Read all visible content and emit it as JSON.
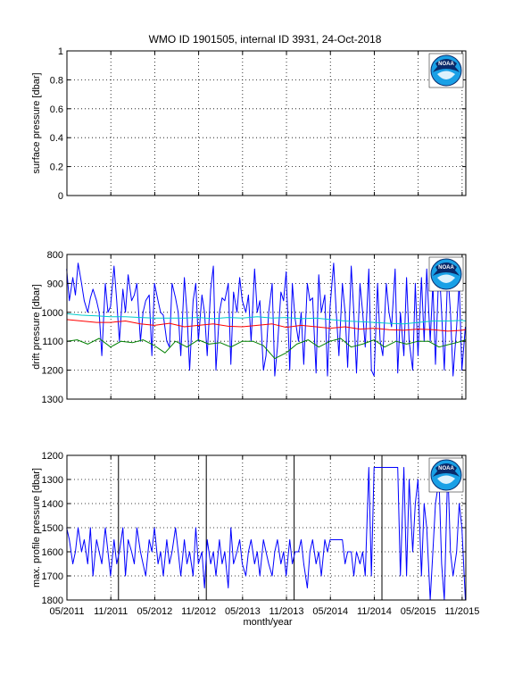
{
  "figure_title": "WMO ID 1901505, internal ID 3931, 24-Oct-2018",
  "x_axis": {
    "label": "month/year",
    "tick_labels": [
      "05/2011",
      "11/2011",
      "05/2012",
      "11/2012",
      "05/2013",
      "11/2013",
      "05/2014",
      "11/2014",
      "05/2015",
      "11/2015"
    ],
    "tick_values": [
      2011.333,
      2011.833,
      2012.333,
      2012.833,
      2013.333,
      2013.833,
      2014.333,
      2014.833,
      2015.333,
      2015.833
    ],
    "range": [
      2011.333,
      2015.875
    ]
  },
  "logo": {
    "icon": "noaa-logo",
    "text": "NOAA"
  },
  "colors": {
    "blue": "#0000ff",
    "red": "#ff0000",
    "green": "#008000",
    "cyan": "#00cccc",
    "black": "#000000"
  },
  "chart_data": [
    {
      "type": "line",
      "ylabel": "surface pressure [dbar]",
      "ylim": [
        0,
        1
      ],
      "y_ticks": [
        "0",
        "0.2",
        "0.4",
        "0.6",
        "0.8",
        "1"
      ],
      "y_tick_values": [
        0,
        0.2,
        0.4,
        0.6,
        0.8,
        1
      ],
      "grid": true,
      "series": []
    },
    {
      "type": "line",
      "ylabel": "drift pressure [dbar]",
      "ylim": [
        800,
        1300
      ],
      "y_reversed": true,
      "y_ticks": [
        "800",
        "900",
        "1000",
        "1100",
        "1200",
        "1300"
      ],
      "y_tick_values": [
        800,
        900,
        1000,
        1100,
        1200,
        1300
      ],
      "grid": true,
      "series": [
        {
          "color": "blue",
          "x": [
            2011.33,
            2011.36,
            2011.4,
            2011.43,
            2011.46,
            2011.5,
            2011.53,
            2011.57,
            2011.6,
            2011.63,
            2011.67,
            2011.7,
            2011.73,
            2011.77,
            2011.8,
            2011.83,
            2011.87,
            2011.9,
            2011.93,
            2011.97,
            2012.0,
            2012.03,
            2012.07,
            2012.1,
            2012.13,
            2012.17,
            2012.2,
            2012.23,
            2012.27,
            2012.3,
            2012.33,
            2012.37,
            2012.4,
            2012.43,
            2012.47,
            2012.5,
            2012.53,
            2012.57,
            2012.6,
            2012.63,
            2012.67,
            2012.7,
            2012.73,
            2012.77,
            2012.8,
            2012.83,
            2012.87,
            2012.9,
            2012.93,
            2012.97,
            2013.0,
            2013.03,
            2013.07,
            2013.1,
            2013.13,
            2013.17,
            2013.2,
            2013.23,
            2013.27,
            2013.3,
            2013.33,
            2013.37,
            2013.4,
            2013.43,
            2013.47,
            2013.5,
            2013.53,
            2013.57,
            2013.6,
            2013.63,
            2013.67,
            2013.7,
            2013.73,
            2013.77,
            2013.8,
            2013.83,
            2013.87,
            2013.9,
            2013.93,
            2013.97,
            2014.0,
            2014.03,
            2014.07,
            2014.1,
            2014.13,
            2014.17,
            2014.2,
            2014.23,
            2014.27,
            2014.3,
            2014.33,
            2014.37,
            2014.4,
            2014.43,
            2014.47,
            2014.5,
            2014.53,
            2014.57,
            2014.6,
            2014.63,
            2014.67,
            2014.7,
            2014.73,
            2014.77,
            2014.8,
            2014.83,
            2014.87,
            2014.9,
            2014.93,
            2014.97,
            2015.0,
            2015.03,
            2015.07,
            2015.1,
            2015.13,
            2015.17,
            2015.2,
            2015.23,
            2015.27,
            2015.3,
            2015.33,
            2015.37,
            2015.4,
            2015.43,
            2015.47,
            2015.5,
            2015.53,
            2015.57,
            2015.6,
            2015.63,
            2015.67,
            2015.7,
            2015.73,
            2015.77,
            2015.8,
            2015.83,
            2015.87
          ],
          "y": [
            850,
            960,
            880,
            940,
            830,
            900,
            960,
            1000,
            950,
            920,
            960,
            1000,
            1150,
            900,
            1000,
            980,
            840,
            960,
            1100,
            920,
            1000,
            870,
            960,
            940,
            900,
            1100,
            1000,
            960,
            940,
            1150,
            900,
            960,
            1000,
            1010,
            1100,
            1120,
            900,
            950,
            1000,
            1150,
            880,
            1000,
            1200,
            960,
            900,
            1100,
            940,
            1000,
            1150,
            920,
            840,
            1200,
            1000,
            950,
            960,
            900,
            1180,
            930,
            1000,
            880,
            960,
            1000,
            940,
            1100,
            850,
            1000,
            960,
            1200,
            1150,
            1000,
            900,
            1220,
            1120,
            930,
            960,
            860,
            1200,
            900,
            1020,
            1100,
            1000,
            1180,
            900,
            960,
            950,
            1210,
            870,
            1000,
            940,
            1220,
            980,
            830,
            1000,
            1150,
            900,
            1000,
            1190,
            840,
            1000,
            1210,
            900,
            1000,
            1120,
            850,
            1200,
            1220,
            900,
            1100,
            1150,
            900,
            1000,
            1050,
            850,
            1210,
            1000,
            1150,
            880,
            1100,
            1200,
            900,
            1150,
            880,
            1100,
            850,
            1100,
            900,
            1180,
            830,
            1000,
            1200,
            860,
            1000,
            1220,
            1050,
            900,
            1200,
            1050
          ],
          "name": ""
        },
        {
          "color": "cyan",
          "x": [
            2011.33,
            2011.5,
            2011.67,
            2011.83,
            2012.0,
            2012.17,
            2012.33,
            2012.5,
            2012.67,
            2012.83,
            2013.0,
            2013.17,
            2013.33,
            2013.5,
            2013.67,
            2013.83,
            2014.0,
            2014.17,
            2014.33,
            2014.5,
            2014.67,
            2014.83,
            2015.0,
            2015.17,
            2015.33,
            2015.5,
            2015.67,
            2015.83,
            2015.87
          ],
          "y": [
            1005,
            1010,
            1012,
            1015,
            1015,
            1018,
            1020,
            1020,
            1020,
            1018,
            1022,
            1018,
            1020,
            1015,
            1020,
            1018,
            1022,
            1020,
            1025,
            1030,
            1032,
            1035,
            1038,
            1040,
            1035,
            1030,
            1030,
            1028,
            1030
          ]
        },
        {
          "color": "red",
          "x": [
            2011.33,
            2011.5,
            2011.67,
            2011.83,
            2012.0,
            2012.17,
            2012.33,
            2012.5,
            2012.67,
            2012.83,
            2013.0,
            2013.17,
            2013.33,
            2013.5,
            2013.67,
            2013.83,
            2014.0,
            2014.17,
            2014.33,
            2014.5,
            2014.67,
            2014.83,
            2015.0,
            2015.17,
            2015.33,
            2015.5,
            2015.67,
            2015.83,
            2015.87
          ],
          "y": [
            1025,
            1030,
            1035,
            1035,
            1030,
            1040,
            1045,
            1038,
            1050,
            1045,
            1040,
            1048,
            1050,
            1045,
            1040,
            1052,
            1045,
            1050,
            1055,
            1050,
            1058,
            1055,
            1060,
            1062,
            1058,
            1060,
            1065,
            1062,
            1060
          ]
        },
        {
          "color": "green",
          "x": [
            2011.33,
            2011.45,
            2011.57,
            2011.7,
            2011.83,
            2011.95,
            2012.08,
            2012.2,
            2012.33,
            2012.45,
            2012.57,
            2012.7,
            2012.83,
            2012.95,
            2013.08,
            2013.2,
            2013.33,
            2013.45,
            2013.57,
            2013.7,
            2013.83,
            2013.95,
            2014.08,
            2014.2,
            2014.33,
            2014.45,
            2014.57,
            2014.7,
            2014.83,
            2014.95,
            2015.08,
            2015.2,
            2015.33,
            2015.45,
            2015.57,
            2015.7,
            2015.83,
            2015.87
          ],
          "y": [
            1100,
            1095,
            1110,
            1090,
            1120,
            1100,
            1105,
            1095,
            1115,
            1140,
            1100,
            1120,
            1095,
            1110,
            1105,
            1120,
            1100,
            1100,
            1115,
            1160,
            1140,
            1110,
            1095,
            1120,
            1100,
            1090,
            1120,
            1110,
            1095,
            1120,
            1100,
            1110,
            1100,
            1100,
            1120,
            1110,
            1100,
            1095
          ]
        }
      ]
    },
    {
      "type": "line",
      "ylabel": "max. profile pressure [dbar]",
      "ylim": [
        1200,
        1800
      ],
      "y_reversed": true,
      "y_ticks": [
        "1200",
        "1300",
        "1400",
        "1500",
        "1600",
        "1700",
        "1800"
      ],
      "y_tick_values": [
        1200,
        1300,
        1400,
        1500,
        1600,
        1700,
        1800
      ],
      "grid": true,
      "vertical_markers": [
        2011.92,
        2012.92,
        2013.92,
        2014.92
      ],
      "series": [
        {
          "color": "blue",
          "x": [
            2011.33,
            2011.36,
            2011.4,
            2011.43,
            2011.46,
            2011.5,
            2011.53,
            2011.57,
            2011.6,
            2011.63,
            2011.67,
            2011.7,
            2011.73,
            2011.77,
            2011.8,
            2011.83,
            2011.87,
            2011.9,
            2011.93,
            2011.97,
            2012.0,
            2012.03,
            2012.07,
            2012.1,
            2012.13,
            2012.17,
            2012.2,
            2012.23,
            2012.27,
            2012.3,
            2012.33,
            2012.37,
            2012.4,
            2012.43,
            2012.47,
            2012.5,
            2012.53,
            2012.57,
            2012.6,
            2012.63,
            2012.67,
            2012.7,
            2012.73,
            2012.77,
            2012.8,
            2012.83,
            2012.87,
            2012.9,
            2012.93,
            2012.97,
            2013.0,
            2013.03,
            2013.07,
            2013.1,
            2013.13,
            2013.17,
            2013.2,
            2013.23,
            2013.27,
            2013.3,
            2013.33,
            2013.37,
            2013.4,
            2013.43,
            2013.47,
            2013.5,
            2013.53,
            2013.57,
            2013.6,
            2013.63,
            2013.67,
            2013.7,
            2013.73,
            2013.77,
            2013.8,
            2013.83,
            2013.87,
            2013.9,
            2013.93,
            2013.97,
            2014.0,
            2014.03,
            2014.07,
            2014.1,
            2014.13,
            2014.17,
            2014.2,
            2014.23,
            2014.27,
            2014.3,
            2014.33,
            2014.37,
            2014.4,
            2014.43,
            2014.47,
            2014.5,
            2014.53,
            2014.57,
            2014.6,
            2014.63,
            2014.67,
            2014.7,
            2014.73,
            2014.77,
            2014.8,
            2014.83,
            2014.87,
            2014.9,
            2014.93,
            2014.97,
            2015.0,
            2015.03,
            2015.07,
            2015.1,
            2015.13,
            2015.17,
            2015.2,
            2015.23,
            2015.27,
            2015.3,
            2015.33,
            2015.37,
            2015.4,
            2015.43,
            2015.47,
            2015.5,
            2015.53,
            2015.57,
            2015.6,
            2015.63,
            2015.67,
            2015.7,
            2015.73,
            2015.77,
            2015.8,
            2015.83,
            2015.87
          ],
          "y": [
            1500,
            1550,
            1650,
            1600,
            1500,
            1600,
            1550,
            1650,
            1500,
            1700,
            1550,
            1600,
            1650,
            1500,
            1600,
            1700,
            1550,
            1650,
            1600,
            1500,
            1700,
            1550,
            1600,
            1650,
            1500,
            1600,
            1650,
            1700,
            1550,
            1600,
            1500,
            1650,
            1600,
            1700,
            1550,
            1650,
            1600,
            1500,
            1600,
            1700,
            1550,
            1650,
            1600,
            1700,
            1500,
            1650,
            1600,
            1750,
            1550,
            1650,
            1600,
            1700,
            1550,
            1650,
            1600,
            1750,
            1500,
            1650,
            1600,
            1550,
            1650,
            1700,
            1600,
            1550,
            1650,
            1600,
            1700,
            1550,
            1600,
            1650,
            1700,
            1600,
            1550,
            1650,
            1600,
            1700,
            1550,
            1650,
            1600,
            1600,
            1550,
            1650,
            1750,
            1600,
            1550,
            1650,
            1600,
            1700,
            1550,
            1600,
            1550,
            1550,
            1550,
            1550,
            1550,
            1650,
            1600,
            1600,
            1700,
            1600,
            1650,
            1600,
            1700,
            1250,
            1700,
            1250,
            1250,
            1250,
            1250,
            1250,
            1250,
            1250,
            1250,
            1250,
            1700,
            1250,
            1700,
            1300,
            1600,
            1400,
            1300,
            1700,
            1400,
            1500,
            1800,
            1600,
            1400,
            1300,
            1650,
            1800,
            1250,
            1600,
            1700,
            1600,
            1400,
            1500,
            1800
          ],
          "name": ""
        }
      ]
    }
  ]
}
